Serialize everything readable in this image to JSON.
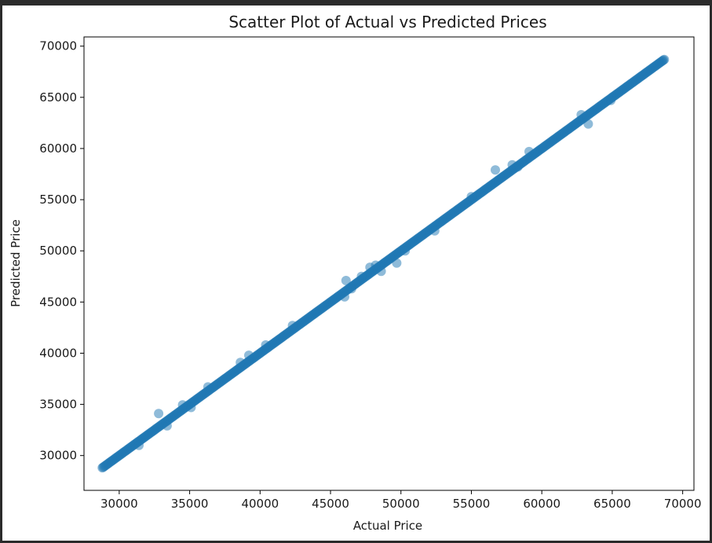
{
  "chart_data": {
    "type": "scatter",
    "title": "Scatter Plot of Actual vs Predicted Prices",
    "xlabel": "Actual Price",
    "ylabel": "Predicted Price",
    "xlim": [
      27500,
      70800
    ],
    "ylim": [
      26600,
      70900
    ],
    "xticks": [
      30000,
      35000,
      40000,
      45000,
      50000,
      55000,
      60000,
      65000,
      70000
    ],
    "yticks": [
      30000,
      35000,
      40000,
      45000,
      50000,
      55000,
      60000,
      65000,
      70000
    ],
    "grid": false,
    "legend": "none",
    "marker_color": "#1f77b4",
    "marker_alpha": 0.5,
    "trend": {
      "x_start": 28800,
      "x_end": 68700,
      "slope": 1.0,
      "intercept": 0
    },
    "outliers": [
      [
        32800,
        34100
      ],
      [
        34500,
        34950
      ],
      [
        35100,
        34700
      ],
      [
        36300,
        36700
      ],
      [
        38600,
        39100
      ],
      [
        39200,
        39800
      ],
      [
        42300,
        42700
      ],
      [
        46000,
        45500
      ],
      [
        46100,
        47100
      ],
      [
        46500,
        46300
      ],
      [
        47200,
        47500
      ],
      [
        47800,
        48400
      ],
      [
        48200,
        48600
      ],
      [
        48600,
        48000
      ],
      [
        49700,
        48800
      ],
      [
        52400,
        51950
      ],
      [
        55000,
        55300
      ],
      [
        56700,
        57900
      ],
      [
        57900,
        58400
      ],
      [
        58300,
        58200
      ],
      [
        59100,
        59700
      ],
      [
        62800,
        63300
      ],
      [
        63300,
        62400
      ],
      [
        64900,
        64700
      ],
      [
        31400,
        31000
      ],
      [
        33400,
        32900
      ],
      [
        40400,
        40800
      ],
      [
        50300,
        50000
      ]
    ]
  }
}
